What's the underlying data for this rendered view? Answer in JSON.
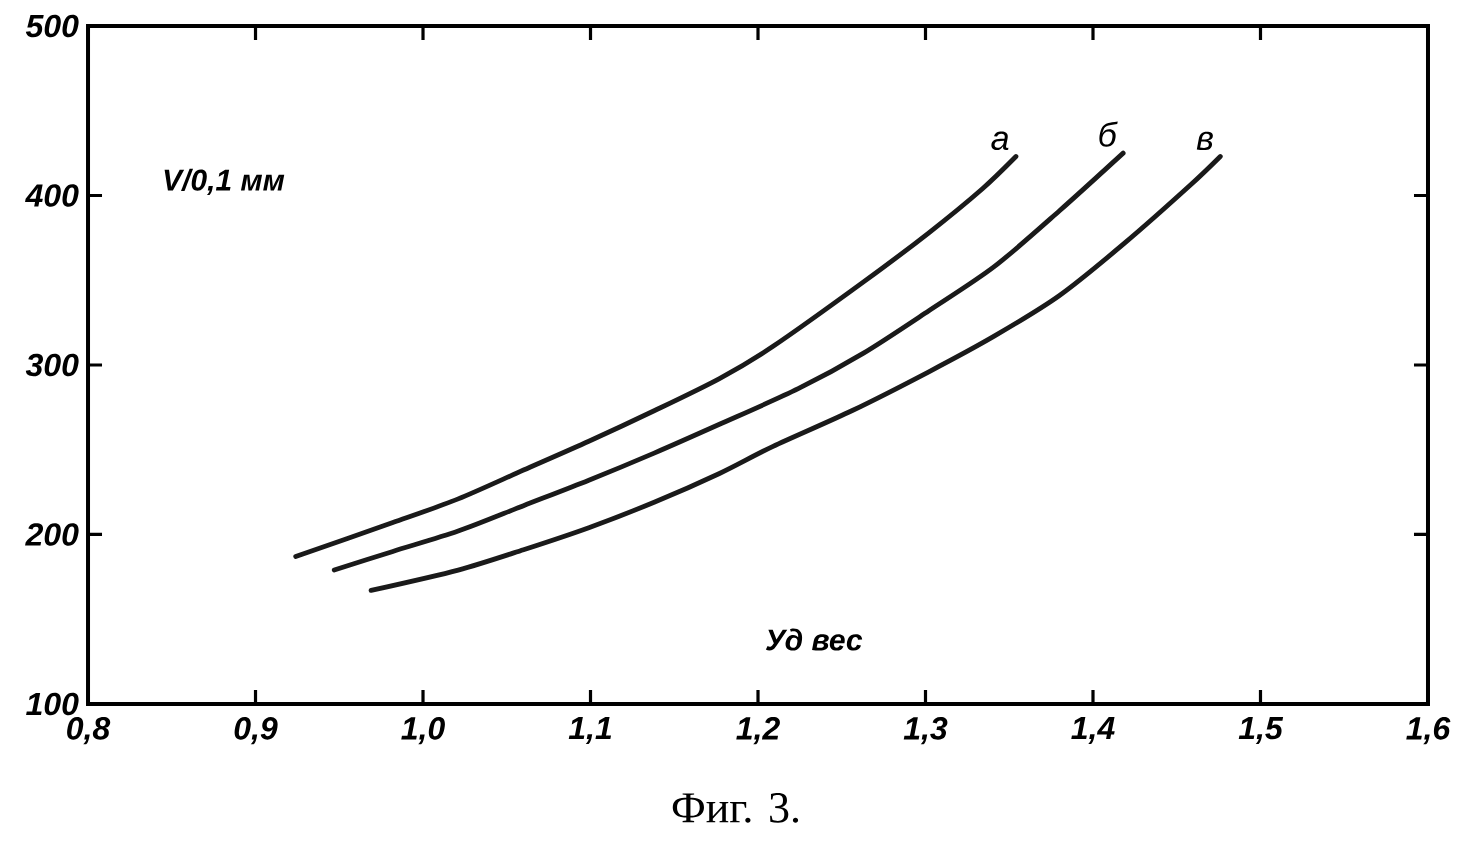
{
  "chart_data": {
    "type": "line",
    "xlabel": "Уд вес",
    "ylabel": "V/0,1 мм",
    "annotations": [
      "Фиг. 3."
    ],
    "xlim": [
      0.8,
      1.6
    ],
    "ylim": [
      100,
      500
    ],
    "xticks": [
      {
        "value": 0.8,
        "label": "0,8"
      },
      {
        "value": 0.9,
        "label": "0,9"
      },
      {
        "value": 1.0,
        "label": "1,0"
      },
      {
        "value": 1.1,
        "label": "1,1"
      },
      {
        "value": 1.2,
        "label": "1,2"
      },
      {
        "value": 1.3,
        "label": "1,3"
      },
      {
        "value": 1.4,
        "label": "1,4"
      },
      {
        "value": 1.5,
        "label": "1,5"
      },
      {
        "value": 1.6,
        "label": "1,6"
      }
    ],
    "yticks": [
      100,
      200,
      300,
      400,
      500
    ],
    "marker": "none",
    "line_style": "solid",
    "series": [
      {
        "name": "а",
        "color": "#1a1a1a",
        "x": [
          0.924,
          0.982,
          1.021,
          1.06,
          1.099,
          1.138,
          1.177,
          1.209,
          1.263,
          1.302,
          1.334,
          1.354
        ],
        "values": [
          187,
          207,
          221,
          238,
          255,
          273,
          292,
          311,
          349,
          378,
          404,
          423
        ]
      },
      {
        "name": "б",
        "color": "#1a1a1a",
        "x": [
          0.947,
          0.982,
          1.021,
          1.06,
          1.099,
          1.138,
          1.177,
          1.224,
          1.263,
          1.302,
          1.341,
          1.38,
          1.418
        ],
        "values": [
          179,
          190,
          202,
          217,
          232,
          248,
          265,
          286,
          307,
          332,
          358,
          391,
          425
        ]
      },
      {
        "name": "в",
        "color": "#1a1a1a",
        "x": [
          0.969,
          1.021,
          1.06,
          1.099,
          1.138,
          1.177,
          1.209,
          1.256,
          1.302,
          1.341,
          1.38,
          1.419,
          1.458,
          1.476
        ],
        "values": [
          167,
          179,
          191,
          204,
          219,
          236,
          252,
          273,
          296,
          317,
          341,
          372,
          406,
          423
        ]
      }
    ]
  }
}
